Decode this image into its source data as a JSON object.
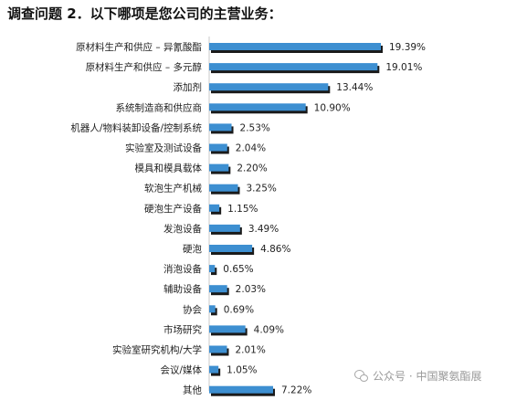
{
  "title": "调查问题 2．以下哪项是您公司的主营业务：",
  "chart_data": {
    "type": "bar",
    "orientation": "horizontal",
    "title": "调查问题 2．以下哪项是您公司的主营业务：",
    "categories": [
      "原材料生产和供应 – 异氰酸酯",
      "原材料生产和供应 – 多元醇",
      "添加剂",
      "系统制造商和供应商",
      "机器人/物料装卸设备/控制系统",
      "实验室及测试设备",
      "模具和模具载体",
      "软泡生产机械",
      "硬泡生产设备",
      "发泡设备",
      "硬泡",
      "消泡设备",
      "辅助设备",
      "协会",
      "市场研究",
      "实验室研究机构/大学",
      "会议/媒体",
      "其他"
    ],
    "values": [
      19.39,
      19.01,
      13.44,
      10.9,
      2.53,
      2.04,
      2.2,
      3.25,
      1.15,
      3.49,
      4.86,
      0.65,
      2.03,
      0.69,
      4.09,
      2.01,
      1.05,
      7.22
    ],
    "value_labels": [
      "19.39%",
      "19.01%",
      "13.44%",
      "10.90%",
      "2.53%",
      "2.04%",
      "2.20%",
      "3.25%",
      "1.15%",
      "3.49%",
      "4.86%",
      "0.65%",
      "2.03%",
      "0.69%",
      "4.09%",
      "2.01%",
      "1.05%",
      "7.22%"
    ],
    "unit": "%",
    "xlim": [
      0,
      20
    ],
    "bar_color": "#3d8fd1",
    "shadow_color": "#1a1a1a",
    "grid": false,
    "legend": "none"
  },
  "watermark": "公众号 · 中国聚氨酯展"
}
